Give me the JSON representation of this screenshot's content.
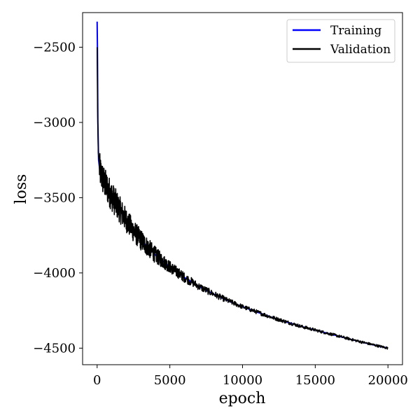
{
  "chart_data": {
    "type": "line",
    "title": "",
    "xlabel": "epoch",
    "ylabel": "loss",
    "xlim": [
      -1000,
      21000
    ],
    "ylim": [
      -4610,
      -2270
    ],
    "x_ticks": [
      0,
      5000,
      10000,
      15000,
      20000
    ],
    "x_tick_labels": [
      "0",
      "5000",
      "10000",
      "15000",
      "20000"
    ],
    "y_ticks": [
      -2500,
      -3000,
      -3500,
      -4000,
      -4500
    ],
    "y_tick_labels": [
      "−2500",
      "−3000",
      "−3500",
      "−4000",
      "−4500"
    ],
    "grid": false,
    "legend": {
      "position": "top-right",
      "entries": [
        "Training",
        "Validation"
      ]
    },
    "series": [
      {
        "name": "Training",
        "color": "#0000ff",
        "points": [
          [
            0,
            -2330
          ],
          [
            20,
            -2500
          ],
          [
            50,
            -3000
          ],
          [
            100,
            -3250
          ],
          [
            200,
            -3330
          ],
          [
            300,
            -3360
          ],
          [
            500,
            -3400
          ],
          [
            1000,
            -3490
          ],
          [
            1500,
            -3570
          ],
          [
            2000,
            -3650
          ],
          [
            2500,
            -3720
          ],
          [
            3000,
            -3780
          ],
          [
            3500,
            -3830
          ],
          [
            4000,
            -3880
          ],
          [
            4500,
            -3920
          ],
          [
            5000,
            -3960
          ],
          [
            6000,
            -4030
          ],
          [
            7000,
            -4090
          ],
          [
            8000,
            -4140
          ],
          [
            9000,
            -4185
          ],
          [
            10000,
            -4225
          ],
          [
            11000,
            -4260
          ],
          [
            12000,
            -4295
          ],
          [
            13000,
            -4325
          ],
          [
            14000,
            -4355
          ],
          [
            15000,
            -4380
          ],
          [
            16000,
            -4405
          ],
          [
            17000,
            -4430
          ],
          [
            18000,
            -4455
          ],
          [
            19000,
            -4478
          ],
          [
            20000,
            -4500
          ]
        ]
      },
      {
        "name": "Validation",
        "color": "#000000",
        "points": [
          [
            0,
            -2500
          ],
          [
            30,
            -2900
          ],
          [
            80,
            -3200
          ],
          [
            150,
            -3300
          ],
          [
            250,
            -3340
          ],
          [
            400,
            -3380
          ],
          [
            600,
            -3420
          ],
          [
            1000,
            -3490
          ],
          [
            1500,
            -3570
          ],
          [
            2000,
            -3650
          ],
          [
            2500,
            -3720
          ],
          [
            3000,
            -3780
          ],
          [
            3500,
            -3830
          ],
          [
            4000,
            -3880
          ],
          [
            4500,
            -3920
          ],
          [
            5000,
            -3960
          ],
          [
            6000,
            -4030
          ],
          [
            7000,
            -4090
          ],
          [
            8000,
            -4140
          ],
          [
            9000,
            -4185
          ],
          [
            10000,
            -4225
          ],
          [
            11000,
            -4260
          ],
          [
            12000,
            -4295
          ],
          [
            13000,
            -4325
          ],
          [
            14000,
            -4355
          ],
          [
            15000,
            -4380
          ],
          [
            16000,
            -4405
          ],
          [
            17000,
            -4430
          ],
          [
            18000,
            -4455
          ],
          [
            19000,
            -4478
          ],
          [
            20000,
            -4500
          ]
        ],
        "noise_amplitude": [
          [
            0,
            110
          ],
          [
            1000,
            100
          ],
          [
            2000,
            80
          ],
          [
            3000,
            70
          ],
          [
            4000,
            55
          ],
          [
            5000,
            40
          ],
          [
            7000,
            25
          ],
          [
            10000,
            15
          ],
          [
            15000,
            10
          ],
          [
            20000,
            8
          ]
        ]
      }
    ]
  }
}
